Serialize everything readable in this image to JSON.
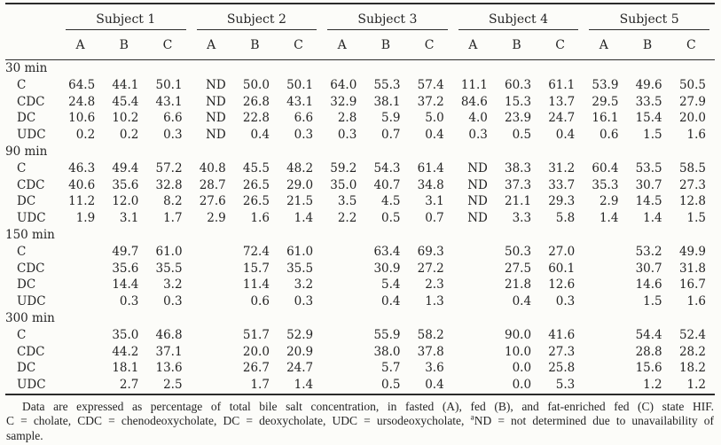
{
  "table": {
    "subjects": [
      "Subject 1",
      "Subject 2",
      "Subject 3",
      "Subject 4",
      "Subject 5"
    ],
    "conditions": [
      "A",
      "B",
      "C"
    ],
    "groups": [
      {
        "label": "30 min",
        "rows": [
          {
            "label": "C",
            "values": [
              "64.5",
              "44.1",
              "50.1",
              "ND",
              "50.0",
              "50.1",
              "64.0",
              "55.3",
              "57.4",
              "11.1",
              "60.3",
              "61.1",
              "53.9",
              "49.6",
              "50.5"
            ]
          },
          {
            "label": "CDC",
            "values": [
              "24.8",
              "45.4",
              "43.1",
              "ND",
              "26.8",
              "43.1",
              "32.9",
              "38.1",
              "37.2",
              "84.6",
              "15.3",
              "13.7",
              "29.5",
              "33.5",
              "27.9"
            ]
          },
          {
            "label": "DC",
            "values": [
              "10.6",
              "10.2",
              "6.6",
              "ND",
              "22.8",
              "6.6",
              "2.8",
              "5.9",
              "5.0",
              "4.0",
              "23.9",
              "24.7",
              "16.1",
              "15.4",
              "20.0"
            ]
          },
          {
            "label": "UDC",
            "values": [
              "0.2",
              "0.2",
              "0.3",
              "ND",
              "0.4",
              "0.3",
              "0.3",
              "0.7",
              "0.4",
              "0.3",
              "0.5",
              "0.4",
              "0.6",
              "1.5",
              "1.6"
            ]
          }
        ]
      },
      {
        "label": "90 min",
        "rows": [
          {
            "label": "C",
            "values": [
              "46.3",
              "49.4",
              "57.2",
              "40.8",
              "45.5",
              "48.2",
              "59.2",
              "54.3",
              "61.4",
              "ND",
              "38.3",
              "31.2",
              "60.4",
              "53.5",
              "58.5"
            ]
          },
          {
            "label": "CDC",
            "values": [
              "40.6",
              "35.6",
              "32.8",
              "28.7",
              "26.5",
              "29.0",
              "35.0",
              "40.7",
              "34.8",
              "ND",
              "37.3",
              "33.7",
              "35.3",
              "30.7",
              "27.3"
            ]
          },
          {
            "label": "DC",
            "values": [
              "11.2",
              "12.0",
              "8.2",
              "27.6",
              "26.5",
              "21.5",
              "3.5",
              "4.5",
              "3.1",
              "ND",
              "21.1",
              "29.3",
              "2.9",
              "14.5",
              "12.8"
            ]
          },
          {
            "label": "UDC",
            "values": [
              "1.9",
              "3.1",
              "1.7",
              "2.9",
              "1.6",
              "1.4",
              "2.2",
              "0.5",
              "0.7",
              "ND",
              "3.3",
              "5.8",
              "1.4",
              "1.4",
              "1.5"
            ]
          }
        ]
      },
      {
        "label": "150 min",
        "rows": [
          {
            "label": "C",
            "values": [
              "",
              "49.7",
              "61.0",
              "",
              "72.4",
              "61.0",
              "",
              "63.4",
              "69.3",
              "",
              "50.3",
              "27.0",
              "",
              "53.2",
              "49.9"
            ]
          },
          {
            "label": "CDC",
            "values": [
              "",
              "35.6",
              "35.5",
              "",
              "15.7",
              "35.5",
              "",
              "30.9",
              "27.2",
              "",
              "27.5",
              "60.1",
              "",
              "30.7",
              "31.8"
            ]
          },
          {
            "label": "DC",
            "values": [
              "",
              "14.4",
              "3.2",
              "",
              "11.4",
              "3.2",
              "",
              "5.4",
              "2.3",
              "",
              "21.8",
              "12.6",
              "",
              "14.6",
              "16.7"
            ]
          },
          {
            "label": "UDC",
            "values": [
              "",
              "0.3",
              "0.3",
              "",
              "0.6",
              "0.3",
              "",
              "0.4",
              "1.3",
              "",
              "0.4",
              "0.3",
              "",
              "1.5",
              "1.6"
            ]
          }
        ]
      },
      {
        "label": "300 min",
        "rows": [
          {
            "label": "C",
            "values": [
              "",
              "35.0",
              "46.8",
              "",
              "51.7",
              "52.9",
              "",
              "55.9",
              "58.2",
              "",
              "90.0",
              "41.6",
              "",
              "54.4",
              "52.4"
            ]
          },
          {
            "label": "CDC",
            "values": [
              "",
              "44.2",
              "37.1",
              "",
              "20.0",
              "20.9",
              "",
              "38.0",
              "37.8",
              "",
              "10.0",
              "27.3",
              "",
              "28.8",
              "28.2"
            ]
          },
          {
            "label": "DC",
            "values": [
              "",
              "18.1",
              "13.6",
              "",
              "26.7",
              "24.7",
              "",
              "5.7",
              "3.6",
              "",
              "0.0",
              "25.8",
              "",
              "15.6",
              "18.2"
            ]
          },
          {
            "label": "UDC",
            "values": [
              "",
              "2.7",
              "2.5",
              "",
              "1.7",
              "1.4",
              "",
              "0.5",
              "0.4",
              "",
              "0.0",
              "5.3",
              "",
              "1.2",
              "1.2"
            ]
          }
        ]
      }
    ]
  },
  "footnote": {
    "line1": "Data are expressed as percentage of total bile salt concentration, in fasted (A), fed (B), and fat-enriched fed (C) state HIF.",
    "line2_before_sup": "C = cholate, CDC = chenodeoxycholate, DC = deoxycholate, UDC = ursodeoxycholate, ",
    "line2_sup": "a",
    "line2_after_sup": "ND = not determined due to unavailability of",
    "line3": "sample."
  },
  "colors": {
    "background": "#fcfcf9",
    "text": "#242424",
    "rule": "#2b2b2b"
  }
}
